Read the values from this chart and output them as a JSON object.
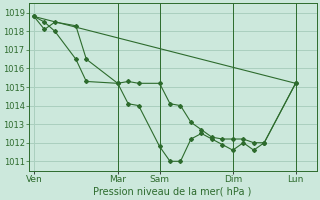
{
  "background_color": "#cce8dc",
  "grid_color": "#aacfbf",
  "line_color": "#2d6b2d",
  "marker_color": "#2d6b2d",
  "xlabel": "Pression niveau de la mer( hPa )",
  "ylim": [
    1010.5,
    1019.5
  ],
  "yticks": [
    1011,
    1012,
    1013,
    1014,
    1015,
    1016,
    1017,
    1018,
    1019
  ],
  "xtick_labels": [
    "Ven",
    "Mar",
    "Sam",
    "Dim",
    "Lun"
  ],
  "xtick_positions": [
    0,
    8,
    12,
    19,
    25
  ],
  "vlines": [
    8,
    12,
    19,
    25
  ],
  "xlim": [
    -0.5,
    27
  ],
  "series1_x": [
    0,
    1,
    2,
    4,
    5,
    8,
    9,
    10,
    12,
    13,
    14,
    15,
    16,
    17,
    18,
    19,
    20,
    21,
    22,
    25
  ],
  "series1_y": [
    1018.8,
    1018.1,
    1018.5,
    1018.3,
    1016.5,
    1015.2,
    1015.3,
    1015.2,
    1015.2,
    1014.1,
    1014.0,
    1013.1,
    1012.7,
    1012.3,
    1012.2,
    1012.2,
    1012.2,
    1012.0,
    1012.0,
    1015.2
  ],
  "series2_x": [
    0,
    1,
    2,
    4,
    5,
    8,
    9,
    10,
    12,
    13,
    14,
    15,
    16,
    17,
    18,
    19,
    20,
    21,
    22,
    25
  ],
  "series2_y": [
    1018.8,
    1018.5,
    1018.0,
    1016.5,
    1015.3,
    1015.2,
    1014.1,
    1014.0,
    1011.8,
    1011.0,
    1011.0,
    1012.2,
    1012.5,
    1012.2,
    1011.9,
    1011.6,
    1012.0,
    1011.6,
    1012.0,
    1015.2
  ],
  "series3_x": [
    0,
    25
  ],
  "series3_y": [
    1018.8,
    1015.2
  ]
}
